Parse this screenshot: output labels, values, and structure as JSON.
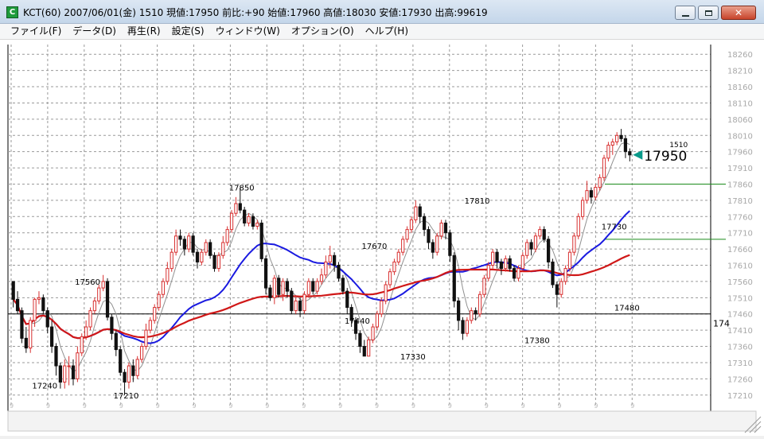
{
  "window": {
    "title": "KCT(60) 2007/06/01(金) 1510 現値:17950 前比:+90 始値:17960 高値:18030 安値:17930 出高:99619",
    "icon_letter": "C",
    "buttons": [
      "minimize-icon",
      "maximize-icon",
      "close-icon"
    ]
  },
  "menu": [
    "ファイル(F)",
    "データ(D)",
    "再生(R)",
    "設定(S)",
    "ウィンドウ(W)",
    "オプション(O)",
    "ヘルプ(H)"
  ],
  "colors": {
    "bullish_candle": "#d83030",
    "bearish_candle": "#101010",
    "ma_short": "#909090",
    "ma_mid": "#1a1ae0",
    "ma_long": "#d01818",
    "marker": "#0a9a8a",
    "guide_line": "#1a8a1a"
  },
  "chart_data": {
    "type": "candlestick",
    "title": "",
    "xlabel": "",
    "ylabel": "",
    "ylim": [
      17180,
      18290
    ],
    "yticks": [
      17210,
      17260,
      17310,
      17360,
      17410,
      17460,
      17510,
      17560,
      17610,
      17660,
      17710,
      17760,
      17810,
      17860,
      17910,
      17960,
      18010,
      18060,
      18110,
      18160,
      18210,
      18260
    ],
    "yticks_partial": [
      "17460",
      "17910",
      "17960"
    ],
    "grid": true,
    "current_price": 17950,
    "current_time": "1510",
    "cursor_y": 17460,
    "cursor_label": "174",
    "horizontal_levels": [
      17860,
      17690
    ],
    "candles": [
      [
        17560,
        17505,
        17560,
        17480
      ],
      [
        17505,
        17470,
        17530,
        17460
      ],
      [
        17470,
        17385,
        17480,
        17370
      ],
      [
        17385,
        17355,
        17420,
        17340
      ],
      [
        17355,
        17440,
        17450,
        17340
      ],
      [
        17440,
        17505,
        17510,
        17420
      ],
      [
        17505,
        17510,
        17530,
        17490
      ],
      [
        17510,
        17470,
        17520,
        17460
      ],
      [
        17470,
        17420,
        17480,
        17400
      ],
      [
        17420,
        17360,
        17440,
        17340
      ],
      [
        17360,
        17300,
        17370,
        17270
      ],
      [
        17300,
        17250,
        17310,
        17230
      ],
      [
        17250,
        17300,
        17320,
        17230
      ],
      [
        17300,
        17300,
        17330,
        17240
      ],
      [
        17300,
        17260,
        17320,
        17240
      ],
      [
        17260,
        17340,
        17360,
        17250
      ],
      [
        17340,
        17390,
        17400,
        17330
      ],
      [
        17390,
        17420,
        17440,
        17380
      ],
      [
        17420,
        17470,
        17480,
        17410
      ],
      [
        17470,
        17500,
        17510,
        17460
      ],
      [
        17500,
        17540,
        17550,
        17490
      ],
      [
        17540,
        17560,
        17580,
        17530
      ],
      [
        17560,
        17450,
        17570,
        17440
      ],
      [
        17450,
        17400,
        17460,
        17380
      ],
      [
        17400,
        17350,
        17410,
        17330
      ],
      [
        17350,
        17280,
        17360,
        17270
      ],
      [
        17280,
        17250,
        17290,
        17210
      ],
      [
        17250,
        17300,
        17310,
        17230
      ],
      [
        17300,
        17270,
        17320,
        17250
      ],
      [
        17270,
        17320,
        17330,
        17260
      ],
      [
        17320,
        17360,
        17370,
        17310
      ],
      [
        17360,
        17410,
        17430,
        17350
      ],
      [
        17410,
        17440,
        17450,
        17400
      ],
      [
        17440,
        17480,
        17490,
        17430
      ],
      [
        17480,
        17520,
        17530,
        17470
      ],
      [
        17520,
        17560,
        17570,
        17510
      ],
      [
        17560,
        17600,
        17620,
        17550
      ],
      [
        17600,
        17650,
        17660,
        17590
      ],
      [
        17650,
        17700,
        17720,
        17640
      ],
      [
        17700,
        17690,
        17720,
        17670
      ],
      [
        17690,
        17660,
        17700,
        17640
      ],
      [
        17660,
        17700,
        17710,
        17650
      ],
      [
        17700,
        17650,
        17710,
        17640
      ],
      [
        17650,
        17620,
        17660,
        17600
      ],
      [
        17620,
        17650,
        17660,
        17610
      ],
      [
        17650,
        17680,
        17690,
        17640
      ],
      [
        17680,
        17640,
        17690,
        17630
      ],
      [
        17640,
        17600,
        17650,
        17590
      ],
      [
        17600,
        17640,
        17650,
        17590
      ],
      [
        17640,
        17680,
        17700,
        17630
      ],
      [
        17680,
        17720,
        17730,
        17670
      ],
      [
        17720,
        17770,
        17780,
        17710
      ],
      [
        17770,
        17800,
        17820,
        17760
      ],
      [
        17800,
        17780,
        17850,
        17770
      ],
      [
        17780,
        17740,
        17790,
        17730
      ],
      [
        17740,
        17760,
        17770,
        17730
      ],
      [
        17760,
        17730,
        17770,
        17720
      ],
      [
        17730,
        17740,
        17750,
        17720
      ],
      [
        17740,
        17630,
        17750,
        17620
      ],
      [
        17630,
        17540,
        17640,
        17520
      ],
      [
        17540,
        17510,
        17550,
        17500
      ],
      [
        17510,
        17570,
        17580,
        17490
      ],
      [
        17570,
        17520,
        17580,
        17510
      ],
      [
        17520,
        17560,
        17570,
        17500
      ],
      [
        17560,
        17530,
        17570,
        17510
      ],
      [
        17530,
        17470,
        17540,
        17460
      ],
      [
        17470,
        17500,
        17510,
        17460
      ],
      [
        17500,
        17470,
        17510,
        17450
      ],
      [
        17470,
        17520,
        17530,
        17460
      ],
      [
        17520,
        17560,
        17570,
        17510
      ],
      [
        17560,
        17530,
        17570,
        17520
      ],
      [
        17530,
        17560,
        17570,
        17520
      ],
      [
        17560,
        17580,
        17600,
        17550
      ],
      [
        17580,
        17620,
        17640,
        17570
      ],
      [
        17620,
        17640,
        17670,
        17600
      ],
      [
        17640,
        17610,
        17650,
        17590
      ],
      [
        17610,
        17570,
        17620,
        17560
      ],
      [
        17570,
        17530,
        17580,
        17520
      ],
      [
        17530,
        17480,
        17540,
        17460
      ],
      [
        17480,
        17440,
        17490,
        17420
      ],
      [
        17440,
        17400,
        17450,
        17380
      ],
      [
        17400,
        17360,
        17410,
        17340
      ],
      [
        17360,
        17330,
        17380,
        17330
      ],
      [
        17330,
        17380,
        17390,
        17330
      ],
      [
        17380,
        17420,
        17430,
        17370
      ],
      [
        17420,
        17460,
        17470,
        17410
      ],
      [
        17460,
        17500,
        17510,
        17450
      ],
      [
        17500,
        17550,
        17560,
        17490
      ],
      [
        17550,
        17590,
        17600,
        17540
      ],
      [
        17590,
        17620,
        17630,
        17580
      ],
      [
        17620,
        17650,
        17660,
        17610
      ],
      [
        17650,
        17690,
        17700,
        17640
      ],
      [
        17690,
        17720,
        17730,
        17680
      ],
      [
        17720,
        17750,
        17760,
        17710
      ],
      [
        17750,
        17790,
        17810,
        17740
      ],
      [
        17790,
        17760,
        17800,
        17740
      ],
      [
        17760,
        17720,
        17770,
        17700
      ],
      [
        17720,
        17680,
        17730,
        17660
      ],
      [
        17680,
        17650,
        17690,
        17630
      ],
      [
        17650,
        17700,
        17710,
        17640
      ],
      [
        17700,
        17740,
        17750,
        17690
      ],
      [
        17740,
        17710,
        17750,
        17690
      ],
      [
        17710,
        17640,
        17720,
        17620
      ],
      [
        17640,
        17500,
        17650,
        17480
      ],
      [
        17500,
        17440,
        17510,
        17410
      ],
      [
        17440,
        17400,
        17450,
        17380
      ],
      [
        17400,
        17440,
        17450,
        17390
      ],
      [
        17440,
        17470,
        17480,
        17430
      ],
      [
        17470,
        17460,
        17480,
        17440
      ],
      [
        17460,
        17520,
        17530,
        17450
      ],
      [
        17520,
        17570,
        17580,
        17510
      ],
      [
        17570,
        17610,
        17620,
        17560
      ],
      [
        17610,
        17650,
        17660,
        17600
      ],
      [
        17650,
        17620,
        17660,
        17600
      ],
      [
        17620,
        17600,
        17630,
        17580
      ],
      [
        17600,
        17630,
        17640,
        17590
      ],
      [
        17630,
        17600,
        17640,
        17590
      ],
      [
        17600,
        17570,
        17610,
        17560
      ],
      [
        17570,
        17600,
        17610,
        17560
      ],
      [
        17600,
        17640,
        17650,
        17590
      ],
      [
        17640,
        17680,
        17690,
        17630
      ],
      [
        17680,
        17660,
        17690,
        17640
      ],
      [
        17660,
        17700,
        17710,
        17650
      ],
      [
        17700,
        17720,
        17730,
        17690
      ],
      [
        17720,
        17690,
        17730,
        17680
      ],
      [
        17690,
        17620,
        17700,
        17600
      ],
      [
        17620,
        17550,
        17630,
        17540
      ],
      [
        17550,
        17520,
        17560,
        17480
      ],
      [
        17520,
        17560,
        17570,
        17510
      ],
      [
        17560,
        17600,
        17610,
        17550
      ],
      [
        17600,
        17650,
        17660,
        17590
      ],
      [
        17650,
        17700,
        17710,
        17640
      ],
      [
        17700,
        17760,
        17770,
        17690
      ],
      [
        17760,
        17810,
        17820,
        17750
      ],
      [
        17810,
        17840,
        17870,
        17800
      ],
      [
        17840,
        17820,
        17850,
        17800
      ],
      [
        17820,
        17850,
        17860,
        17810
      ],
      [
        17850,
        17880,
        17890,
        17840
      ],
      [
        17880,
        17940,
        17950,
        17870
      ],
      [
        17940,
        17980,
        17990,
        17930
      ],
      [
        17980,
        17990,
        18000,
        17950
      ],
      [
        17990,
        18010,
        18020,
        17980
      ],
      [
        18010,
        18000,
        18030,
        17990
      ],
      [
        18000,
        17960,
        18010,
        17940
      ],
      [
        17960,
        17950,
        17970,
        17930
      ]
    ],
    "annotations": [
      {
        "text": "17240",
        "x": 7,
        "y": 17240
      },
      {
        "text": "17560",
        "x": 17,
        "y": 17560
      },
      {
        "text": "17210",
        "x": 26,
        "y": 17210
      },
      {
        "text": "17850",
        "x": 53,
        "y": 17850
      },
      {
        "text": "17670",
        "x": 84,
        "y": 17670
      },
      {
        "text": "17440",
        "x": 80,
        "y": 17440
      },
      {
        "text": "17330",
        "x": 93,
        "y": 17330
      },
      {
        "text": "17810",
        "x": 108,
        "y": 17810
      },
      {
        "text": "17380",
        "x": 122,
        "y": 17380
      },
      {
        "text": "17730",
        "x": 140,
        "y": 17730
      },
      {
        "text": "17480",
        "x": 143,
        "y": 17480
      }
    ]
  }
}
